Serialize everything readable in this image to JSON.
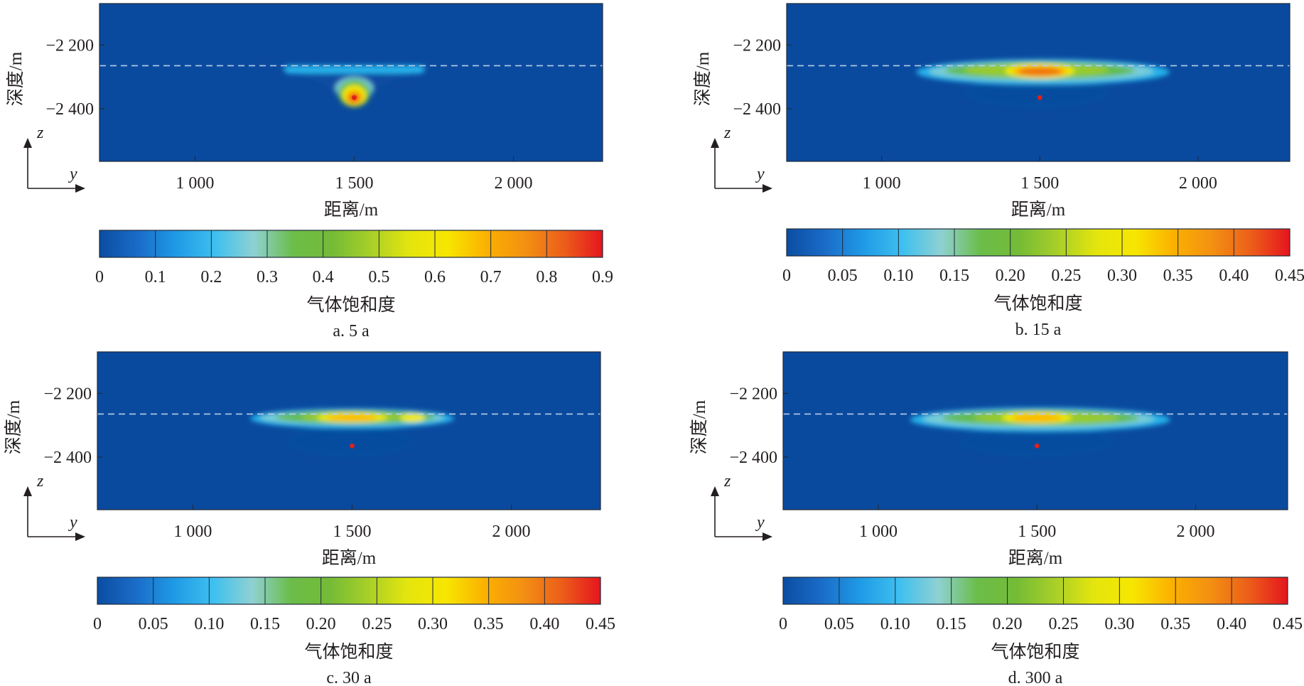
{
  "figure": {
    "colors": {
      "background": "#0a4a9e",
      "frame": "#1e2a3a",
      "dashed_line": "#b6cde8",
      "injection_point": "#e0201c",
      "colormap": [
        "#0b4da2",
        "#1f8ee0",
        "#27b7ee",
        "#7ccfd6",
        "#61b944",
        "#9ccb2c",
        "#f5ec00",
        "#fbb900",
        "#ef6f12",
        "#e5151e"
      ]
    }
  },
  "chart_data": [
    {
      "type": "heatmap",
      "caption": "a. 5 a",
      "xlabel": "距离/m",
      "ylabel": "深度/m",
      "axis_z": "z",
      "axis_y": "y",
      "x_range": [
        700,
        2280
      ],
      "y_range": [
        -2070,
        -2565
      ],
      "x_ticks": [
        {
          "value": 1000,
          "label": "1 000"
        },
        {
          "value": 1500,
          "label": "1 500"
        },
        {
          "value": 2000,
          "label": "2 000"
        }
      ],
      "y_ticks": [
        {
          "value": -2200,
          "label": "−2 200"
        },
        {
          "value": -2400,
          "label": "−2 400"
        }
      ],
      "caprock_depth": -2265,
      "injection_point": {
        "x": 1500,
        "depth": -2365
      },
      "colorbar": {
        "label": "气体饱和度",
        "min": 0,
        "max": 0.9,
        "ticks": [
          "0",
          "0.1",
          "0.2",
          "0.3",
          "0.4",
          "0.5",
          "0.6",
          "0.7",
          "0.8",
          "0.9"
        ]
      },
      "plume": [
        {
          "x": [
            1230,
            1770
          ],
          "depth": [
            -2258,
            -2350
          ],
          "shape": "funnel",
          "level": 0.08
        },
        {
          "x": [
            1280,
            1720
          ],
          "depth": [
            -2265,
            -2290
          ],
          "shape": "rect",
          "level": 0.22
        },
        {
          "x": [
            1440,
            1560
          ],
          "depth": [
            -2300,
            -2375
          ],
          "shape": "ellipse",
          "level": 0.3
        },
        {
          "x": [
            1450,
            1550
          ],
          "depth": [
            -2310,
            -2395
          ],
          "shape": "ellipse",
          "level": 0.4
        },
        {
          "x": [
            1462,
            1538
          ],
          "depth": [
            -2325,
            -2390
          ],
          "shape": "ellipse",
          "level": 0.55
        },
        {
          "x": [
            1472,
            1528
          ],
          "depth": [
            -2340,
            -2388
          ],
          "shape": "ellipse",
          "level": 0.65
        },
        {
          "x": [
            1482,
            1518
          ],
          "depth": [
            -2350,
            -2380
          ],
          "shape": "ellipse",
          "level": 0.78
        },
        {
          "x": [
            1490,
            1510
          ],
          "depth": [
            -2358,
            -2374
          ],
          "shape": "ellipse",
          "level": 0.9
        }
      ]
    },
    {
      "type": "heatmap",
      "caption": "b. 15 a",
      "xlabel": "距离/m",
      "ylabel": "深度/m",
      "axis_z": "z",
      "axis_y": "y",
      "x_range": [
        700,
        2290
      ],
      "y_range": [
        -2070,
        -2565
      ],
      "x_ticks": [
        {
          "value": 1000,
          "label": "1 000"
        },
        {
          "value": 1500,
          "label": "1 500"
        },
        {
          "value": 2000,
          "label": "2 000"
        }
      ],
      "y_ticks": [
        {
          "value": -2200,
          "label": "−2 200"
        },
        {
          "value": -2400,
          "label": "−2 400"
        }
      ],
      "caprock_depth": -2265,
      "injection_point": {
        "x": 1500,
        "depth": -2365
      },
      "colorbar": {
        "label": "气体饱和度",
        "min": 0,
        "max": 0.45,
        "ticks": [
          "0",
          "0.05",
          "0.10",
          "0.15",
          "0.20",
          "0.25",
          "0.30",
          "0.35",
          "0.40",
          "0.45"
        ]
      },
      "plume": [
        {
          "x": [
            1260,
            1720
          ],
          "depth": [
            -2300,
            -2400
          ],
          "shape": "ellipse",
          "level": 0.02
        },
        {
          "x": [
            1110,
            1910
          ],
          "depth": [
            -2245,
            -2325
          ],
          "shape": "ellipse",
          "level": 0.1
        },
        {
          "x": [
            1150,
            1860
          ],
          "depth": [
            -2250,
            -2315
          ],
          "shape": "ellipse",
          "level": 0.17
        },
        {
          "x": [
            1200,
            1800
          ],
          "depth": [
            -2255,
            -2305
          ],
          "shape": "ellipse",
          "level": 0.22
        },
        {
          "x": [
            1260,
            1720
          ],
          "depth": [
            -2258,
            -2300
          ],
          "shape": "ellipse",
          "level": 0.26
        },
        {
          "x": [
            1390,
            1610
          ],
          "depth": [
            -2258,
            -2305
          ],
          "shape": "ellipse",
          "level": 0.31
        },
        {
          "x": [
            1410,
            1590
          ],
          "depth": [
            -2265,
            -2300
          ],
          "shape": "ellipse",
          "level": 0.35
        },
        {
          "x": [
            1430,
            1570
          ],
          "depth": [
            -2270,
            -2297
          ],
          "shape": "ellipse",
          "level": 0.38
        }
      ]
    },
    {
      "type": "heatmap",
      "caption": "c. 30 a",
      "xlabel": "距离/m",
      "ylabel": "深度/m",
      "axis_z": "z",
      "axis_y": "y",
      "x_range": [
        700,
        2280
      ],
      "y_range": [
        -2070,
        -2565
      ],
      "x_ticks": [
        {
          "value": 1000,
          "label": "1 000"
        },
        {
          "value": 1500,
          "label": "1 500"
        },
        {
          "value": 2000,
          "label": "2 000"
        }
      ],
      "y_ticks": [
        {
          "value": -2200,
          "label": "−2 200"
        },
        {
          "value": -2400,
          "label": "−2 400"
        }
      ],
      "caprock_depth": -2265,
      "injection_point": {
        "x": 1500,
        "depth": -2365
      },
      "colorbar": {
        "label": "气体饱和度",
        "min": 0,
        "max": 0.45,
        "ticks": [
          "0",
          "0.05",
          "0.10",
          "0.15",
          "0.20",
          "0.25",
          "0.30",
          "0.35",
          "0.40",
          "0.45"
        ]
      },
      "plume": [
        {
          "x": [
            1290,
            1700
          ],
          "depth": [
            -2300,
            -2400
          ],
          "shape": "ellipse",
          "level": 0.02
        },
        {
          "x": [
            1180,
            1820
          ],
          "depth": [
            -2248,
            -2310
          ],
          "shape": "ellipse",
          "level": 0.1
        },
        {
          "x": [
            1210,
            1790
          ],
          "depth": [
            -2252,
            -2300
          ],
          "shape": "ellipse",
          "level": 0.17
        },
        {
          "x": [
            1260,
            1760
          ],
          "depth": [
            -2255,
            -2295
          ],
          "shape": "ellipse",
          "level": 0.22
        },
        {
          "x": [
            1340,
            1660
          ],
          "depth": [
            -2258,
            -2290
          ],
          "shape": "ellipse",
          "level": 0.26
        },
        {
          "x": [
            1650,
            1730
          ],
          "depth": [
            -2262,
            -2290
          ],
          "shape": "ellipse",
          "level": 0.28
        },
        {
          "x": [
            1390,
            1610
          ],
          "depth": [
            -2260,
            -2292
          ],
          "shape": "ellipse",
          "level": 0.31
        },
        {
          "x": [
            1420,
            1580
          ],
          "depth": [
            -2266,
            -2288
          ],
          "shape": "ellipse",
          "level": 0.34
        }
      ]
    },
    {
      "type": "heatmap",
      "caption": "d. 300 a",
      "xlabel": "距离/m",
      "ylabel": "深度/m",
      "axis_z": "z",
      "axis_y": "y",
      "x_range": [
        700,
        2290
      ],
      "y_range": [
        -2070,
        -2565
      ],
      "x_ticks": [
        {
          "value": 1000,
          "label": "1 000"
        },
        {
          "value": 1500,
          "label": "1 500"
        },
        {
          "value": 2000,
          "label": "2 000"
        }
      ],
      "y_ticks": [
        {
          "value": -2200,
          "label": "−2 200"
        },
        {
          "value": -2400,
          "label": "−2 400"
        }
      ],
      "caprock_depth": -2265,
      "injection_point": {
        "x": 1500,
        "depth": -2365
      },
      "colorbar": {
        "label": "气体饱和度",
        "min": 0,
        "max": 0.45,
        "ticks": [
          "0",
          "0.05",
          "0.10",
          "0.15",
          "0.20",
          "0.25",
          "0.30",
          "0.35",
          "0.40",
          "0.45"
        ]
      },
      "plume": [
        {
          "x": [
            1250,
            1750
          ],
          "depth": [
            -2300,
            -2400
          ],
          "shape": "ellipse",
          "level": 0.02
        },
        {
          "x": [
            1100,
            1920
          ],
          "depth": [
            -2245,
            -2320
          ],
          "shape": "ellipse",
          "level": 0.1
        },
        {
          "x": [
            1140,
            1870
          ],
          "depth": [
            -2250,
            -2310
          ],
          "shape": "ellipse",
          "level": 0.17
        },
        {
          "x": [
            1200,
            1820
          ],
          "depth": [
            -2254,
            -2300
          ],
          "shape": "ellipse",
          "level": 0.22
        },
        {
          "x": [
            1300,
            1760
          ],
          "depth": [
            -2258,
            -2295
          ],
          "shape": "ellipse",
          "level": 0.26
        },
        {
          "x": [
            1390,
            1610
          ],
          "depth": [
            -2258,
            -2295
          ],
          "shape": "ellipse",
          "level": 0.3
        },
        {
          "x": [
            1420,
            1580
          ],
          "depth": [
            -2264,
            -2290
          ],
          "shape": "ellipse",
          "level": 0.33
        }
      ]
    }
  ]
}
